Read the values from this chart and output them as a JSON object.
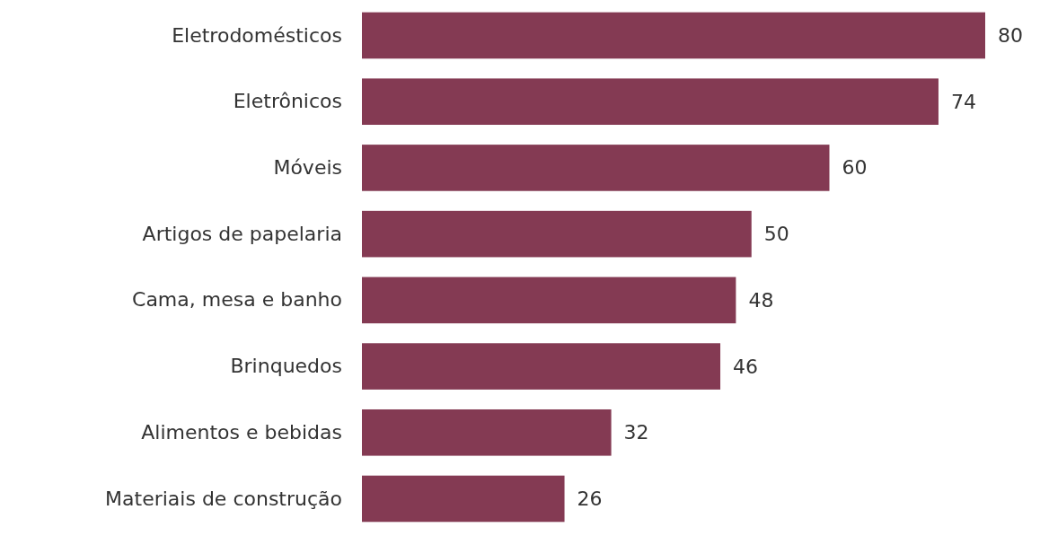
{
  "chart_data": {
    "type": "bar",
    "orientation": "horizontal",
    "categories": [
      "Eletrodomésticos",
      "Eletrônicos",
      "Móveis",
      "Artigos de papelaria",
      "Cama, mesa e banho",
      "Brinquedos",
      "Alimentos e bebidas",
      "Materiais de construção"
    ],
    "values": [
      80,
      74,
      60,
      50,
      48,
      46,
      32,
      26
    ],
    "color": "#843a53",
    "data_labels": true
  }
}
